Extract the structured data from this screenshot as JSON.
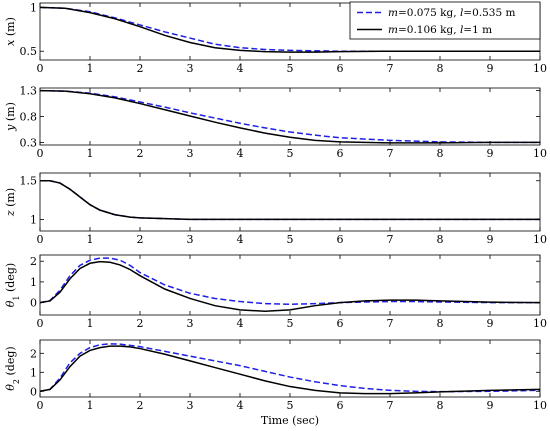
{
  "chart_data": [
    {
      "type": "line",
      "ylabel": "x (m)",
      "ylabel_var": "x",
      "ylabel_unit": " (m)",
      "xlim": [
        0,
        10
      ],
      "ylim": [
        0.4,
        1.05
      ],
      "yticks": [
        0.5,
        1
      ],
      "yticklabels": [
        "0.5",
        "1"
      ],
      "legend": "top-right",
      "series": [
        {
          "name": "m=0.075 kg, l=0.535 m",
          "style": "dashed",
          "color": "#1f1fe6",
          "x": [
            0,
            0.5,
            1,
            1.5,
            2,
            2.5,
            3,
            3.5,
            4,
            4.5,
            5,
            5.5,
            6,
            7,
            8,
            9,
            10
          ],
          "y": [
            1.0,
            0.99,
            0.95,
            0.88,
            0.8,
            0.72,
            0.65,
            0.58,
            0.54,
            0.52,
            0.51,
            0.505,
            0.5,
            0.5,
            0.5,
            0.5,
            0.5
          ]
        },
        {
          "name": "m=0.106 kg, l=1 m",
          "style": "solid",
          "color": "#000000",
          "x": [
            0,
            0.5,
            1,
            1.5,
            2,
            2.5,
            3,
            3.5,
            4,
            4.5,
            5,
            5.5,
            6,
            7,
            8,
            9,
            10
          ],
          "y": [
            1.0,
            0.99,
            0.94,
            0.87,
            0.78,
            0.68,
            0.6,
            0.54,
            0.51,
            0.495,
            0.49,
            0.49,
            0.495,
            0.5,
            0.5,
            0.5,
            0.5
          ]
        }
      ]
    },
    {
      "type": "line",
      "ylabel": "y (m)",
      "ylabel_var": "y",
      "ylabel_unit": " (m)",
      "xlim": [
        0,
        10
      ],
      "ylim": [
        0.25,
        1.35
      ],
      "yticks": [
        0.3,
        0.8,
        1.3
      ],
      "yticklabels": [
        "0.3",
        "0.8",
        "1.3"
      ],
      "series": [
        {
          "name": "m=0.075 kg, l=0.535 m",
          "style": "dashed",
          "color": "#1f1fe6",
          "x": [
            0,
            0.5,
            1,
            1.5,
            2,
            2.5,
            3,
            3.5,
            4,
            4.5,
            5,
            5.5,
            6,
            7,
            8,
            9,
            10
          ],
          "y": [
            1.3,
            1.29,
            1.25,
            1.18,
            1.08,
            0.98,
            0.87,
            0.77,
            0.67,
            0.58,
            0.5,
            0.44,
            0.39,
            0.34,
            0.31,
            0.3,
            0.3
          ]
        },
        {
          "name": "m=0.106 kg, l=1 m",
          "style": "solid",
          "color": "#000000",
          "x": [
            0,
            0.5,
            1,
            1.5,
            2,
            2.5,
            3,
            3.5,
            4,
            4.5,
            5,
            5.5,
            6,
            7,
            8,
            9,
            10
          ],
          "y": [
            1.3,
            1.29,
            1.24,
            1.16,
            1.05,
            0.93,
            0.81,
            0.69,
            0.58,
            0.48,
            0.4,
            0.34,
            0.31,
            0.29,
            0.29,
            0.3,
            0.3
          ]
        }
      ]
    },
    {
      "type": "line",
      "ylabel": "z (m)",
      "ylabel_var": "z",
      "ylabel_unit": " (m)",
      "xlim": [
        0,
        10
      ],
      "ylim": [
        0.85,
        1.6
      ],
      "yticks": [
        1,
        1.5
      ],
      "yticklabels": [
        "1",
        "1.5"
      ],
      "series": [
        {
          "name": "m=0.075 kg, l=0.535 m",
          "style": "dashed",
          "color": "#1f1fe6",
          "x": [
            0,
            0.2,
            0.4,
            0.6,
            0.8,
            1,
            1.2,
            1.5,
            1.8,
            2,
            2.5,
            3,
            4,
            5,
            6,
            7,
            8,
            9,
            10
          ],
          "y": [
            1.5,
            1.5,
            1.47,
            1.39,
            1.29,
            1.19,
            1.12,
            1.06,
            1.03,
            1.02,
            1.01,
            1.0,
            1.0,
            1.0,
            1.0,
            1.0,
            1.0,
            1.0,
            1.0
          ]
        },
        {
          "name": "m=0.106 kg, l=1 m",
          "style": "solid",
          "color": "#000000",
          "x": [
            0,
            0.2,
            0.4,
            0.6,
            0.8,
            1,
            1.2,
            1.5,
            1.8,
            2,
            2.5,
            3,
            4,
            5,
            6,
            7,
            8,
            9,
            10
          ],
          "y": [
            1.5,
            1.5,
            1.47,
            1.39,
            1.29,
            1.19,
            1.12,
            1.06,
            1.03,
            1.02,
            1.01,
            1.0,
            1.0,
            1.0,
            1.0,
            1.0,
            1.0,
            1.0,
            1.0
          ]
        }
      ]
    },
    {
      "type": "line",
      "ylabel": "θ1 (deg)",
      "ylabel_var": "θ",
      "ylabel_sub": "1",
      "ylabel_unit": " (deg)",
      "xlim": [
        0,
        10
      ],
      "ylim": [
        -0.6,
        2.3
      ],
      "yticks": [
        0,
        1,
        2
      ],
      "yticklabels": [
        "0",
        "1",
        "2"
      ],
      "series": [
        {
          "name": "m=0.075 kg, l=0.535 m",
          "style": "dashed",
          "color": "#1f1fe6",
          "x": [
            0,
            0.2,
            0.4,
            0.6,
            0.8,
            1,
            1.2,
            1.4,
            1.6,
            1.8,
            2,
            2.5,
            3,
            3.5,
            4,
            4.5,
            5,
            5.5,
            6,
            6.5,
            7,
            7.5,
            8,
            9,
            10
          ],
          "y": [
            0,
            0.1,
            0.6,
            1.3,
            1.8,
            2.05,
            2.15,
            2.15,
            2.05,
            1.8,
            1.45,
            0.85,
            0.45,
            0.2,
            0.05,
            -0.05,
            -0.08,
            -0.05,
            0.0,
            0.03,
            0.05,
            0.05,
            0.03,
            0.0,
            0.0
          ]
        },
        {
          "name": "m=0.106 kg, l=1 m",
          "style": "solid",
          "color": "#000000",
          "x": [
            0,
            0.2,
            0.4,
            0.6,
            0.8,
            1,
            1.2,
            1.4,
            1.6,
            1.8,
            2,
            2.5,
            3,
            3.5,
            4,
            4.5,
            5,
            5.5,
            6,
            6.5,
            7,
            7.5,
            8,
            9,
            10
          ],
          "y": [
            0,
            0.08,
            0.5,
            1.15,
            1.65,
            1.9,
            1.98,
            1.95,
            1.82,
            1.6,
            1.3,
            0.65,
            0.2,
            -0.15,
            -0.35,
            -0.42,
            -0.35,
            -0.15,
            0.0,
            0.08,
            0.12,
            0.12,
            0.08,
            0.02,
            0.0
          ]
        }
      ]
    },
    {
      "type": "line",
      "ylabel": "θ2 (deg)",
      "ylabel_var": "θ",
      "ylabel_sub": "2",
      "ylabel_unit": " (deg)",
      "xlim": [
        0,
        10
      ],
      "ylim": [
        -0.3,
        2.7
      ],
      "yticks": [
        0,
        1,
        2
      ],
      "yticklabels": [
        "0",
        "1",
        "2"
      ],
      "xlabel": "Time (sec)",
      "xticks": [
        0,
        1,
        2,
        3,
        4,
        5,
        6,
        7,
        8,
        9,
        10
      ],
      "series": [
        {
          "name": "m=0.075 kg, l=0.535 m",
          "style": "dashed",
          "color": "#1f1fe6",
          "x": [
            0,
            0.2,
            0.4,
            0.6,
            0.8,
            1,
            1.2,
            1.4,
            1.6,
            1.8,
            2,
            2.5,
            3,
            3.5,
            4,
            4.5,
            5,
            5.5,
            6,
            6.5,
            7,
            7.5,
            8,
            9,
            10
          ],
          "y": [
            0,
            0.1,
            0.7,
            1.5,
            2.0,
            2.3,
            2.45,
            2.5,
            2.48,
            2.42,
            2.35,
            2.1,
            1.85,
            1.6,
            1.35,
            1.05,
            0.75,
            0.5,
            0.3,
            0.15,
            0.05,
            0.0,
            -0.02,
            0.0,
            0.05
          ]
        },
        {
          "name": "m=0.106 kg, l=1 m",
          "style": "solid",
          "color": "#000000",
          "x": [
            0,
            0.2,
            0.4,
            0.6,
            0.8,
            1,
            1.2,
            1.4,
            1.6,
            1.8,
            2,
            2.5,
            3,
            3.5,
            4,
            4.5,
            5,
            5.5,
            6,
            6.5,
            7,
            7.5,
            8,
            9,
            10
          ],
          "y": [
            0,
            0.1,
            0.6,
            1.3,
            1.85,
            2.15,
            2.3,
            2.38,
            2.38,
            2.34,
            2.25,
            1.95,
            1.6,
            1.25,
            0.9,
            0.55,
            0.25,
            0.05,
            -0.08,
            -0.12,
            -0.12,
            -0.08,
            -0.03,
            0.05,
            0.1
          ]
        }
      ]
    }
  ],
  "legend": {
    "items": [
      {
        "m_label": "m",
        "m_value": "=0.075 kg, ",
        "l_label": "l",
        "l_value": "=0.535 m",
        "style": "dashed",
        "color": "#1f1fe6"
      },
      {
        "m_label": "m",
        "m_value": "=0.106 kg, ",
        "l_label": "l",
        "l_value": "=1 m",
        "style": "solid",
        "color": "#000000"
      }
    ]
  }
}
